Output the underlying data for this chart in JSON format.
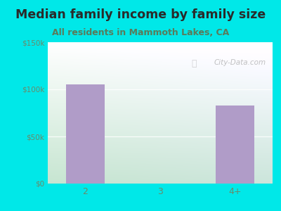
{
  "title": "Median family income by family size",
  "subtitle": "All residents in Mammoth Lakes, CA",
  "categories": [
    "2",
    "3",
    "4+"
  ],
  "values": [
    105000,
    0,
    83000
  ],
  "bar_color": "#b09cc8",
  "ylim": [
    0,
    150000
  ],
  "yticks": [
    0,
    50000,
    100000,
    150000
  ],
  "ytick_labels": [
    "$0",
    "$50k",
    "$100k",
    "$150k"
  ],
  "outer_bg": "#00e8e8",
  "plot_bg_topleft": "#e8f5ee",
  "plot_bg_topright": "#f8fefa",
  "plot_bg_bottomleft": "#d0eedc",
  "plot_bg_bottomright": "#f0faf4",
  "title_color": "#2a2a2a",
  "subtitle_color": "#5a7a5a",
  "tick_color": "#6a8a6a",
  "watermark": "City-Data.com",
  "title_fontsize": 12.5,
  "subtitle_fontsize": 9
}
